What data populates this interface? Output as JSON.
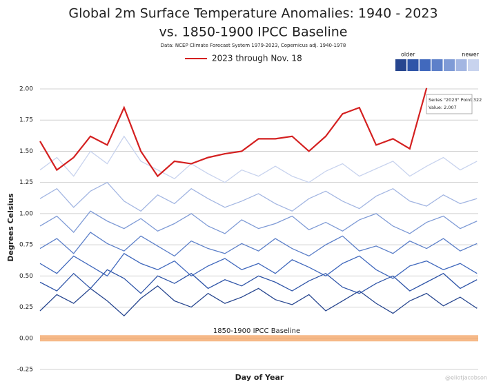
{
  "chart_data": {
    "type": "line",
    "title": "Global 2m Surface Temperature Anomalies: 1940 - 2023",
    "subtitle": "vs. 1850-1900 IPCC Baseline",
    "source": "Data: NCEP Climate Forecast System 1979-2023, Copernicus adj. 1940-1978",
    "x_label": "Day of Year",
    "y_label": "Degrees Celsius",
    "legend_older": "older",
    "legend_newer": "newer",
    "legend_colors": [
      "#27468f",
      "#2f55a8",
      "#4169bd",
      "#5d80c9",
      "#7f9bd6",
      "#a3b6e2",
      "#c8d3ee"
    ],
    "baseline_label": "1850-1900 IPCC Baseline",
    "baseline_color": "#f4a261",
    "tooltip_title": "Series \"2023\" Point 322",
    "tooltip_value": "Value: 2.007",
    "credit": "@eliotjacobson",
    "grid": true,
    "xlim": [
      1,
      366
    ],
    "ylim": [
      -0.25,
      2.0
    ],
    "yticks": [
      {
        "value": -0.25,
        "label": "-0.25"
      },
      {
        "value": 0,
        "label": "0.00"
      },
      {
        "value": 0.25,
        "label": "0.25"
      },
      {
        "value": 0.5,
        "label": "0.50"
      },
      {
        "value": 0.75,
        "label": "0.75"
      },
      {
        "value": 1,
        "label": "1.00"
      },
      {
        "value": 1.25,
        "label": "1.25"
      },
      {
        "value": 1.5,
        "label": "1.50"
      },
      {
        "value": 1.75,
        "label": "1.75"
      },
      {
        "value": 2,
        "label": "2.00"
      }
    ],
    "x": [
      1,
      15,
      29,
      43,
      57,
      71,
      85,
      99,
      113,
      127,
      141,
      155,
      169,
      183,
      197,
      211,
      225,
      239,
      253,
      267,
      281,
      295,
      309,
      323,
      337,
      351,
      365
    ],
    "series": [
      {
        "color": "#27468f",
        "values": [
          0.22,
          0.35,
          0.28,
          0.4,
          0.3,
          0.18,
          0.32,
          0.42,
          0.3,
          0.25,
          0.36,
          0.28,
          0.33,
          0.4,
          0.31,
          0.27,
          0.35,
          0.22,
          0.3,
          0.38,
          0.28,
          0.2,
          0.3,
          0.36,
          0.26,
          0.33,
          0.24
        ]
      },
      {
        "color": "#2f55a8",
        "values": [
          0.45,
          0.38,
          0.52,
          0.4,
          0.55,
          0.48,
          0.36,
          0.5,
          0.44,
          0.52,
          0.4,
          0.47,
          0.42,
          0.5,
          0.45,
          0.38,
          0.46,
          0.52,
          0.41,
          0.36,
          0.44,
          0.5,
          0.38,
          0.45,
          0.52,
          0.4,
          0.47
        ]
      },
      {
        "color": "#4169bd",
        "values": [
          0.6,
          0.52,
          0.66,
          0.58,
          0.5,
          0.68,
          0.6,
          0.55,
          0.62,
          0.5,
          0.58,
          0.64,
          0.55,
          0.6,
          0.52,
          0.63,
          0.57,
          0.5,
          0.6,
          0.66,
          0.55,
          0.48,
          0.58,
          0.62,
          0.55,
          0.6,
          0.52
        ]
      },
      {
        "color": "#5d80c9",
        "values": [
          0.72,
          0.8,
          0.68,
          0.85,
          0.76,
          0.7,
          0.82,
          0.74,
          0.66,
          0.78,
          0.72,
          0.68,
          0.76,
          0.7,
          0.8,
          0.72,
          0.66,
          0.75,
          0.82,
          0.7,
          0.74,
          0.68,
          0.78,
          0.72,
          0.8,
          0.7,
          0.76
        ]
      },
      {
        "color": "#7f9bd6",
        "values": [
          0.9,
          0.98,
          0.85,
          1.02,
          0.94,
          0.88,
          0.96,
          0.86,
          0.92,
          1.0,
          0.9,
          0.84,
          0.95,
          0.88,
          0.92,
          0.98,
          0.87,
          0.93,
          0.86,
          0.95,
          1.0,
          0.9,
          0.84,
          0.93,
          0.98,
          0.88,
          0.94
        ]
      },
      {
        "color": "#a3b6e2",
        "values": [
          1.12,
          1.2,
          1.05,
          1.18,
          1.25,
          1.1,
          1.02,
          1.15,
          1.08,
          1.2,
          1.12,
          1.05,
          1.1,
          1.16,
          1.08,
          1.02,
          1.12,
          1.18,
          1.1,
          1.04,
          1.14,
          1.2,
          1.1,
          1.06,
          1.15,
          1.08,
          1.12
        ]
      },
      {
        "color": "#c8d3ee",
        "values": [
          1.35,
          1.45,
          1.3,
          1.5,
          1.4,
          1.62,
          1.42,
          1.35,
          1.28,
          1.4,
          1.32,
          1.25,
          1.35,
          1.3,
          1.38,
          1.3,
          1.25,
          1.34,
          1.4,
          1.3,
          1.36,
          1.42,
          1.3,
          1.38,
          1.45,
          1.35,
          1.42
        ]
      },
      {
        "name": "2023 through Nov. 18",
        "color": "#d42020",
        "values": [
          1.58,
          1.35,
          1.45,
          1.62,
          1.55,
          1.85,
          1.5,
          1.3,
          1.42,
          1.4,
          1.45,
          1.48,
          1.5,
          1.6,
          1.6,
          1.62,
          1.5,
          1.62,
          1.8,
          1.85,
          1.55,
          1.6,
          1.52,
          2.007,
          null,
          null,
          null
        ]
      }
    ]
  }
}
